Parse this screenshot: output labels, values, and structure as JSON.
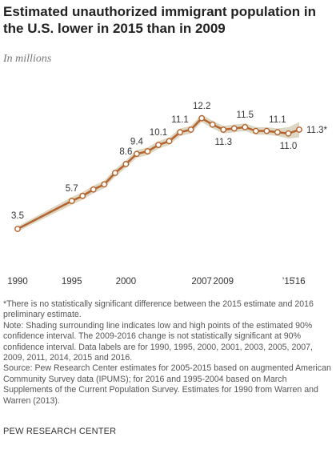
{
  "chart_data": {
    "type": "line",
    "title": "Estimated unauthorized immigrant population in the U.S. lower in 2015 than in 2009",
    "subtitle": "In millions",
    "x": [
      1990,
      1995,
      1996,
      1997,
      1998,
      1999,
      2000,
      2001,
      2002,
      2003,
      2004,
      2005,
      2006,
      2007,
      2008,
      2009,
      2010,
      2011,
      2012,
      2013,
      2014,
      2015,
      2016
    ],
    "values": [
      3.5,
      5.7,
      6.1,
      6.6,
      7.0,
      7.9,
      8.6,
      9.4,
      9.6,
      10.1,
      10.4,
      11.1,
      11.3,
      12.2,
      11.7,
      11.3,
      11.4,
      11.5,
      11.2,
      11.2,
      11.1,
      11.0,
      11.3
    ],
    "value_labels": [
      "3.5",
      "5.7",
      null,
      null,
      null,
      null,
      "8.6",
      "9.4",
      null,
      "10.1",
      null,
      "11.1",
      null,
      "12.2",
      null,
      "11.3",
      null,
      "11.5",
      null,
      null,
      "11.1",
      "11.0",
      "11.3*"
    ],
    "lower": [
      3.3,
      5.4,
      5.8,
      6.3,
      6.7,
      7.6,
      8.3,
      9.1,
      9.3,
      9.8,
      10.1,
      10.8,
      11.0,
      11.9,
      11.4,
      11.0,
      11.1,
      11.2,
      10.9,
      10.9,
      10.8,
      10.6,
      10.7
    ],
    "upper": [
      3.7,
      6.0,
      6.4,
      6.9,
      7.3,
      8.2,
      8.9,
      9.7,
      9.9,
      10.4,
      10.7,
      11.4,
      11.6,
      12.5,
      12.0,
      11.6,
      11.7,
      11.8,
      11.5,
      11.5,
      11.4,
      11.5,
      11.9
    ],
    "color": "#b6622a",
    "band_color": "#dcd7c2",
    "xlim": [
      1990,
      2016
    ],
    "ylim": [
      3,
      13
    ],
    "xticks": [
      1990,
      1995,
      2000,
      2007,
      2009,
      {
        "value": 2015,
        "label": "’15"
      },
      {
        "value": 2016,
        "label": "’16"
      }
    ],
    "footnote": "*There is no statistically significant difference between the 2015 estimate and 2016 preliminary estimate.",
    "note": "Note: Shading surrounding line indicates low and high points of the estimated 90% confidence interval. The 2009-2016 change is not statistically significant at 90% confidence interval. Data labels are for 1990, 1995, 2000, 2001, 2003, 2005, 2007, 2009, 2011, 2014, 2015 and 2016.",
    "source": "Source: Pew Research Center estimates for 2005-2015 based on augmented American Community Survey data (IPUMS); for 2016 and 1995-2004 based on March Supplements of the Current Population Survey. Estimates for 1990 from Warren and Warren (2013).",
    "credit": "PEW RESEARCH CENTER"
  }
}
